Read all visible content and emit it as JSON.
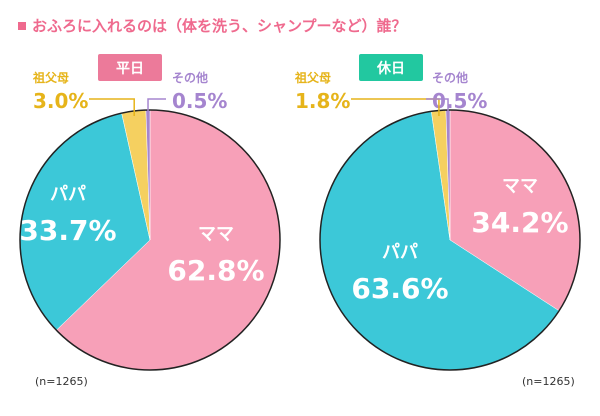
{
  "title": "おふろに入れるのは（体を洗う、シャンプーなど）誰？",
  "colors": {
    "title": "#ef6a8e",
    "pink": "#f7a0b8",
    "cyan": "#3cc8d8",
    "yellow": "#f5d060",
    "purple": "#a585cf",
    "yellow_text": "#e6b41a",
    "badge_weekday": "#ec7a9a",
    "badge_holiday": "#22c8a0"
  },
  "chart_data": [
    {
      "type": "pie",
      "title": "平日",
      "note": "(n=1265)",
      "slices": [
        {
          "label": "ママ",
          "value": 62.8,
          "display": "62.8%"
        },
        {
          "label": "パパ",
          "value": 33.7,
          "display": "33.7%"
        },
        {
          "label": "祖父母",
          "value": 3.0,
          "display": "3.0%"
        },
        {
          "label": "その他",
          "value": 0.5,
          "display": "0.5%"
        }
      ]
    },
    {
      "type": "pie",
      "title": "休日",
      "note": "(n=1265)",
      "slices": [
        {
          "label": "ママ",
          "value": 34.2,
          "display": "34.2%"
        },
        {
          "label": "パパ",
          "value": 63.6,
          "display": "63.6%"
        },
        {
          "label": "祖父母",
          "value": 1.8,
          "display": "1.8%"
        },
        {
          "label": "その他",
          "value": 0.5,
          "display": "0.5%"
        }
      ]
    }
  ]
}
